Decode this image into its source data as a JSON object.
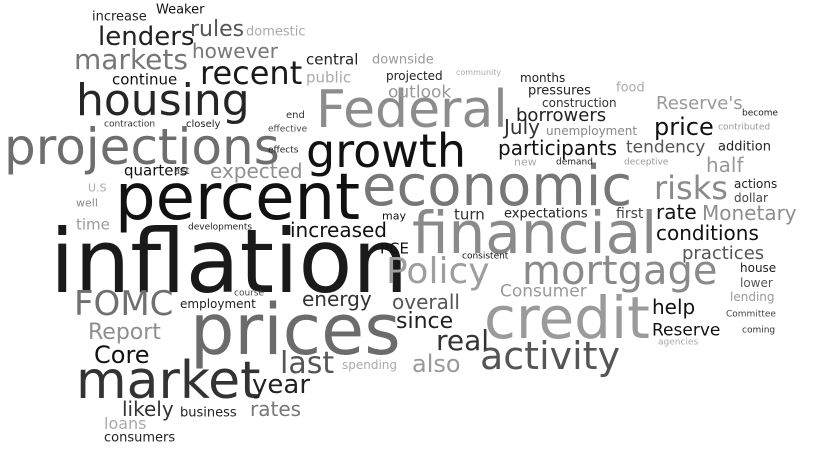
{
  "words": [
    {
      "text": "inflation",
      "color": "#1a1a1a"
    },
    {
      "text": "prices",
      "color": "#6b6b6b"
    },
    {
      "text": "percent",
      "color": "#111111"
    },
    {
      "text": "economic",
      "color": "#777777"
    },
    {
      "text": "market",
      "color": "#333333"
    },
    {
      "text": "financial",
      "color": "#8a8a8a"
    },
    {
      "text": "credit",
      "color": "#9a9a9a"
    },
    {
      "text": "projections",
      "color": "#6e6e6e"
    },
    {
      "text": "growth",
      "color": "#111111"
    },
    {
      "text": "Federal",
      "color": "#8c8c8c"
    },
    {
      "text": "housing",
      "color": "#262626"
    },
    {
      "text": "mortgage",
      "color": "#8a8a8a"
    },
    {
      "text": "activity",
      "color": "#555555"
    },
    {
      "text": "Policy",
      "color": "#9e9e9e"
    },
    {
      "text": "FOMC",
      "color": "#707070"
    },
    {
      "text": "recent",
      "color": "#1a1a1a"
    },
    {
      "text": "risks",
      "color": "#8a8a8a"
    },
    {
      "text": "markets",
      "color": "#777777"
    },
    {
      "text": "last",
      "color": "#555555"
    },
    {
      "text": "lenders",
      "color": "#222222"
    },
    {
      "text": "Core",
      "color": "#111111"
    },
    {
      "text": "year",
      "color": "#222222"
    },
    {
      "text": "real",
      "color": "#333333"
    },
    {
      "text": "rules",
      "color": "#555555"
    },
    {
      "text": "price",
      "color": "#111111"
    },
    {
      "text": "Report",
      "color": "#8f8f8f"
    },
    {
      "text": "increased",
      "color": "#111111"
    },
    {
      "text": "energy",
      "color": "#333333"
    },
    {
      "text": "since",
      "color": "#222222"
    },
    {
      "text": "also",
      "color": "#999999"
    },
    {
      "text": "conditions",
      "color": "#111111"
    },
    {
      "text": "Monetary",
      "color": "#8e8e8e"
    },
    {
      "text": "participants",
      "color": "#111111"
    },
    {
      "text": "help",
      "color": "#111111"
    },
    {
      "text": "rates",
      "color": "#777777"
    },
    {
      "text": "likely",
      "color": "#333333"
    },
    {
      "text": "expected",
      "color": "#909090"
    },
    {
      "text": "overall",
      "color": "#555555"
    },
    {
      "text": "however",
      "color": "#777777"
    },
    {
      "text": "half",
      "color": "#999999"
    },
    {
      "text": "rate",
      "color": "#111111"
    },
    {
      "text": "July",
      "color": "#333333"
    },
    {
      "text": "borrowers",
      "color": "#222222"
    },
    {
      "text": "practices",
      "color": "#555555"
    },
    {
      "text": "tendency",
      "color": "#555555"
    },
    {
      "text": "Reserve's",
      "color": "#999999"
    },
    {
      "text": "Reserve",
      "color": "#111111"
    },
    {
      "text": "Consumer",
      "color": "#999999"
    },
    {
      "text": "outlook",
      "color": "#999999"
    },
    {
      "text": "continue",
      "color": "#111111"
    },
    {
      "text": "quarters",
      "color": "#111111"
    },
    {
      "text": "turn",
      "color": "#333333"
    },
    {
      "text": "PCE",
      "color": "#111111"
    },
    {
      "text": "loans",
      "color": "#aaaaaa"
    },
    {
      "text": "public",
      "color": "#aaaaaa"
    },
    {
      "text": "central",
      "color": "#222222"
    },
    {
      "text": "first",
      "color": "#444444"
    },
    {
      "text": "time",
      "color": "#999999"
    },
    {
      "text": "business",
      "color": "#222222"
    },
    {
      "text": "expectations",
      "color": "#222222"
    },
    {
      "text": "increase",
      "color": "#222222"
    },
    {
      "text": "Weaker",
      "color": "#111111"
    },
    {
      "text": "domestic",
      "color": "#aaaaaa"
    },
    {
      "text": "consumers",
      "color": "#222222"
    },
    {
      "text": "employment",
      "color": "#222222"
    },
    {
      "text": "downside",
      "color": "#999999"
    },
    {
      "text": "projected",
      "color": "#222222"
    },
    {
      "text": "pressures",
      "color": "#222222"
    },
    {
      "text": "construction",
      "color": "#333333"
    },
    {
      "text": "unemployment",
      "color": "#888888"
    },
    {
      "text": "addition",
      "color": "#222222"
    },
    {
      "text": "actions",
      "color": "#222222"
    },
    {
      "text": "dollar",
      "color": "#444444"
    },
    {
      "text": "house",
      "color": "#222222"
    },
    {
      "text": "lower",
      "color": "#555555"
    },
    {
      "text": "lending",
      "color": "#999999"
    },
    {
      "text": "months",
      "color": "#222222"
    },
    {
      "text": "food",
      "color": "#aaaaaa"
    },
    {
      "text": "spending",
      "color": "#aaaaaa"
    },
    {
      "text": "may",
      "color": "#111111"
    },
    {
      "text": "new",
      "color": "#aaaaaa"
    },
    {
      "text": "U.S",
      "color": "#aaaaaa"
    },
    {
      "text": "well",
      "color": "#888888"
    },
    {
      "text": "end",
      "color": "#333333"
    },
    {
      "text": "effects",
      "color": "#222222"
    },
    {
      "text": "act",
      "color": "#444444"
    },
    {
      "text": "closely",
      "color": "#222222"
    },
    {
      "text": "contraction",
      "color": "#333333"
    },
    {
      "text": "effective",
      "color": "#444444"
    },
    {
      "text": "developments",
      "color": "#222222"
    },
    {
      "text": "consistent",
      "color": "#111111"
    },
    {
      "text": "demand",
      "color": "#222222"
    },
    {
      "text": "deceptive",
      "color": "#999999"
    },
    {
      "text": "become",
      "color": "#222222"
    },
    {
      "text": "contributed",
      "color": "#999999"
    },
    {
      "text": "Committee",
      "color": "#444444"
    },
    {
      "text": "coming",
      "color": "#333333"
    },
    {
      "text": "agencies",
      "color": "#aaaaaa"
    },
    {
      "text": "course",
      "color": "#444444"
    },
    {
      "text": "community",
      "color": "#aaaaaa"
    }
  ]
}
